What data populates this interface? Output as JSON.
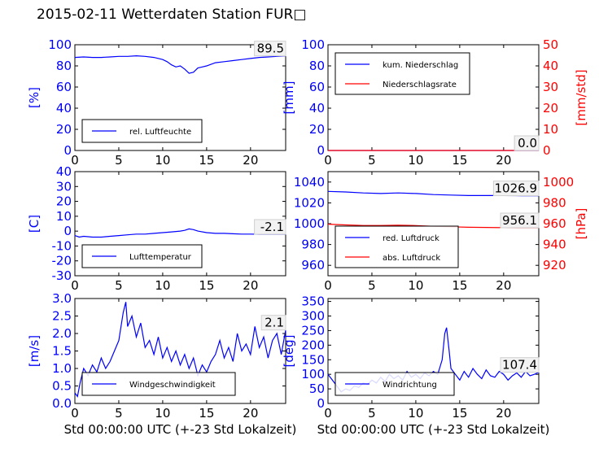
{
  "page": {
    "title": "2015-02-11 Wetterdaten Station FUR□"
  },
  "colors": {
    "left_axis": "#0000ff",
    "right_axis": "#ff0000",
    "box": "#000000",
    "grid": "#000000"
  },
  "chart_data": [
    {
      "id": "humidity",
      "type": "line",
      "xlim": [
        0,
        24
      ],
      "ylim": [
        0,
        100
      ],
      "xticks": [
        0,
        5,
        10,
        15,
        20
      ],
      "yticks": [
        0,
        20,
        40,
        60,
        80,
        100
      ],
      "ylabel": "[%]",
      "current_value": "89.5",
      "legend": {
        "placement": "lower-left",
        "entries": [
          {
            "label": "rel. Luftfeuchte",
            "color": "#0000ff"
          }
        ]
      },
      "series": [
        {
          "name": "rel. Luftfeuchte",
          "color": "#0000ff",
          "x": [
            0,
            1,
            2,
            3,
            4,
            5,
            6,
            7,
            8,
            9,
            10,
            10.5,
            11,
            11.5,
            12,
            12.5,
            13,
            13.5,
            14,
            14.5,
            15,
            16,
            17,
            18,
            19,
            20,
            21,
            22,
            23,
            24
          ],
          "y": [
            88,
            88.5,
            88,
            88,
            88.5,
            89,
            89,
            89.5,
            89,
            88,
            86,
            84,
            81,
            79,
            80,
            77,
            73,
            74,
            78,
            79,
            80,
            83,
            84,
            85,
            86,
            87,
            88,
            88.5,
            89,
            89.5
          ]
        }
      ]
    },
    {
      "id": "precipitation",
      "type": "line",
      "xlim": [
        0,
        24
      ],
      "ylim": [
        0,
        100
      ],
      "y2lim": [
        0,
        50
      ],
      "xticks": [
        0,
        5,
        10,
        15,
        20
      ],
      "yticks": [
        0,
        20,
        40,
        60,
        80,
        100
      ],
      "y2ticks": [
        0,
        10,
        20,
        30,
        40,
        50
      ],
      "ylabel": "[mm]",
      "y2label": "[mm/std]",
      "current_value": "0.0",
      "current_value_2": "0.0",
      "legend": {
        "placement": "upper-left",
        "entries": [
          {
            "label": "kum. Niederschlag",
            "color": "#0000ff"
          },
          {
            "label": "Niederschlagsrate",
            "color": "#ff0000"
          }
        ]
      },
      "series": [
        {
          "name": "kum. Niederschlag",
          "color": "#0000ff",
          "axis": "left",
          "x": [
            0,
            24
          ],
          "y": [
            0,
            0
          ]
        },
        {
          "name": "Niederschlagsrate",
          "color": "#ff0000",
          "axis": "right",
          "x": [
            0,
            24
          ],
          "y": [
            0,
            0
          ]
        }
      ]
    },
    {
      "id": "temperature",
      "type": "line",
      "xlim": [
        0,
        24
      ],
      "ylim": [
        -30,
        40
      ],
      "xticks": [
        0,
        5,
        10,
        15,
        20
      ],
      "yticks": [
        -30,
        -20,
        -10,
        0,
        10,
        20,
        30,
        40
      ],
      "ylabel": "[C]",
      "current_value": "-2.1",
      "legend": {
        "placement": "lower-left",
        "entries": [
          {
            "label": "Lufttemperatur",
            "color": "#0000ff"
          }
        ]
      },
      "series": [
        {
          "name": "Lufttemperatur",
          "color": "#0000ff",
          "x": [
            0,
            0.5,
            1,
            2,
            3,
            4,
            5,
            6,
            7,
            8,
            9,
            10,
            11,
            12,
            12.5,
            13,
            13.5,
            14,
            15,
            16,
            17,
            18,
            19,
            20,
            21,
            22,
            23,
            24
          ],
          "y": [
            -3,
            -4,
            -3.5,
            -4,
            -4,
            -3.5,
            -3,
            -2.5,
            -2,
            -2,
            -1.5,
            -1,
            -0.5,
            0,
            0.5,
            1.5,
            1,
            0,
            -1,
            -1.5,
            -1.5,
            -1.8,
            -2,
            -2,
            -2.1,
            -2.1,
            -2.1,
            -2.1
          ]
        }
      ]
    },
    {
      "id": "pressure",
      "type": "line",
      "xlim": [
        0,
        24
      ],
      "ylim": [
        950,
        1050
      ],
      "y2lim": [
        910,
        1010
      ],
      "xticks": [
        0,
        5,
        10,
        15,
        20
      ],
      "yticks": [
        960,
        980,
        1000,
        1020,
        1040
      ],
      "y2ticks": [
        920,
        940,
        960,
        980,
        1000
      ],
      "ylabel": "",
      "y2label": "[hPa]",
      "current_value": "1026.9",
      "current_value_2": "956.1",
      "legend": {
        "placement": "lower-left",
        "entries": [
          {
            "label": "red. Luftdruck",
            "color": "#0000ff"
          },
          {
            "label": "abs. Luftdruck",
            "color": "#ff0000"
          }
        ]
      },
      "series": [
        {
          "name": "red. Luftdruck",
          "color": "#0000ff",
          "axis": "left",
          "x": [
            0,
            2,
            4,
            6,
            8,
            10,
            12,
            14,
            16,
            18,
            20,
            22,
            24
          ],
          "y": [
            1031,
            1030.5,
            1029.5,
            1029,
            1029.5,
            1029,
            1028,
            1027.5,
            1027,
            1027,
            1027,
            1026.9,
            1026.9
          ]
        },
        {
          "name": "abs. Luftdruck",
          "color": "#ff0000",
          "axis": "right",
          "x": [
            0,
            2,
            4,
            6,
            8,
            10,
            12,
            14,
            16,
            18,
            20,
            22,
            24
          ],
          "y": [
            959.5,
            958.8,
            958.3,
            958.3,
            958.5,
            958.2,
            957.5,
            957.0,
            956.6,
            956.4,
            956.2,
            956.1,
            956.1
          ]
        }
      ]
    },
    {
      "id": "windspeed",
      "type": "line",
      "xlim": [
        0,
        24
      ],
      "ylim": [
        0,
        3.0
      ],
      "xticks": [
        0,
        5,
        10,
        15,
        20
      ],
      "yticks": [
        0.0,
        0.5,
        1.0,
        1.5,
        2.0,
        2.5,
        3.0
      ],
      "ylabel": "[m/s]",
      "xlabel": "Std 00:00:00 UTC (+-23 Std Lokalzeit)",
      "current_value": "2.1",
      "legend": {
        "placement": "lower-left",
        "entries": [
          {
            "label": "Windgeschwindigkeit",
            "color": "#0000ff"
          }
        ]
      },
      "series": [
        {
          "name": "Windgeschwindigkeit",
          "color": "#0000ff",
          "x": [
            0,
            0.3,
            0.6,
            1,
            1.5,
            2,
            2.5,
            3,
            3.5,
            4,
            4.5,
            5,
            5.5,
            5.8,
            6,
            6.5,
            7,
            7.5,
            8,
            8.5,
            9,
            9.5,
            10,
            10.5,
            11,
            11.5,
            12,
            12.5,
            13,
            13.5,
            14,
            14.5,
            15,
            15.5,
            16,
            16.5,
            17,
            17.5,
            18,
            18.5,
            19,
            19.5,
            20,
            20.5,
            21,
            21.5,
            22,
            22.5,
            23,
            23.5,
            24
          ],
          "y": [
            0.3,
            0.2,
            0.6,
            1.0,
            0.8,
            1.1,
            0.9,
            1.3,
            1.0,
            1.2,
            1.5,
            1.8,
            2.6,
            2.9,
            2.2,
            2.5,
            1.9,
            2.3,
            1.6,
            1.8,
            1.4,
            1.9,
            1.3,
            1.6,
            1.2,
            1.5,
            1.1,
            1.4,
            1.0,
            1.3,
            0.8,
            1.1,
            0.9,
            1.2,
            1.4,
            1.8,
            1.3,
            1.6,
            1.2,
            2.0,
            1.5,
            1.7,
            1.4,
            2.2,
            1.6,
            1.9,
            1.3,
            1.8,
            2.0,
            1.4,
            2.1
          ]
        }
      ]
    },
    {
      "id": "winddirection",
      "type": "line",
      "xlim": [
        0,
        24
      ],
      "ylim": [
        0,
        360
      ],
      "xticks": [
        0,
        5,
        10,
        15,
        20
      ],
      "yticks": [
        0,
        50,
        100,
        150,
        200,
        250,
        300,
        350
      ],
      "ylabel": "[deg]",
      "xlabel": "Std 00:00:00 UTC (+-23 Std Lokalzeit)",
      "current_value": "107.4",
      "legend": {
        "placement": "lower-left",
        "entries": [
          {
            "label": "Windrichtung",
            "color": "#0000ff"
          }
        ]
      },
      "series": [
        {
          "name": "Windrichtung",
          "color": "#0000ff",
          "x": [
            0,
            0.5,
            1,
            1.5,
            2,
            2.5,
            3,
            3.5,
            4,
            4.5,
            5,
            5.5,
            6,
            6.5,
            7,
            7.5,
            8,
            8.5,
            9,
            9.5,
            10,
            10.5,
            11,
            11.5,
            12,
            12.5,
            13,
            13.3,
            13.5,
            13.8,
            14,
            14.5,
            15,
            15.5,
            16,
            16.5,
            17,
            17.5,
            18,
            18.5,
            19,
            19.5,
            20,
            20.5,
            21,
            21.5,
            22,
            22.5,
            23,
            23.5,
            24
          ],
          "y": [
            100,
            80,
            60,
            40,
            50,
            45,
            60,
            55,
            70,
            65,
            80,
            70,
            90,
            75,
            100,
            85,
            95,
            80,
            110,
            90,
            100,
            85,
            105,
            95,
            110,
            100,
            150,
            240,
            260,
            180,
            120,
            100,
            80,
            110,
            90,
            120,
            100,
            85,
            115,
            95,
            90,
            110,
            100,
            80,
            95,
            105,
            90,
            110,
            95,
            100,
            107
          ]
        }
      ]
    }
  ]
}
